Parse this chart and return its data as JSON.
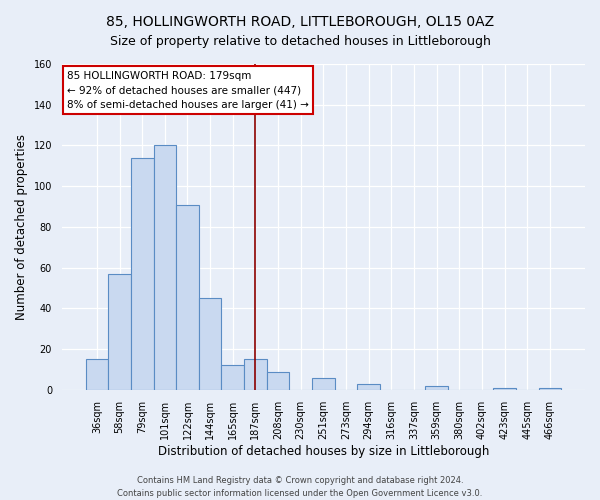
{
  "title": "85, HOLLINGWORTH ROAD, LITTLEBOROUGH, OL15 0AZ",
  "subtitle": "Size of property relative to detached houses in Littleborough",
  "xlabel": "Distribution of detached houses by size in Littleborough",
  "ylabel": "Number of detached properties",
  "categories": [
    "36sqm",
    "58sqm",
    "79sqm",
    "101sqm",
    "122sqm",
    "144sqm",
    "165sqm",
    "187sqm",
    "208sqm",
    "230sqm",
    "251sqm",
    "273sqm",
    "294sqm",
    "316sqm",
    "337sqm",
    "359sqm",
    "380sqm",
    "402sqm",
    "423sqm",
    "445sqm",
    "466sqm"
  ],
  "values": [
    15,
    57,
    114,
    120,
    91,
    45,
    12,
    15,
    9,
    0,
    6,
    0,
    3,
    0,
    0,
    2,
    0,
    0,
    1,
    0,
    1
  ],
  "bar_color": "#c9d9f0",
  "bar_edgecolor": "#5a8cc4",
  "bar_linewidth": 0.8,
  "vline_x": 7,
  "vline_color": "#8b0000",
  "vline_linewidth": 1.2,
  "ylim": [
    0,
    160
  ],
  "yticks": [
    0,
    20,
    40,
    60,
    80,
    100,
    120,
    140,
    160
  ],
  "annotation_line1": "85 HOLLINGWORTH ROAD: 179sqm",
  "annotation_line2": "← 92% of detached houses are smaller (447)",
  "annotation_line3": "8% of semi-detached houses are larger (41) →",
  "annotation_box_edgecolor": "#cc0000",
  "annotation_box_facecolor": "#ffffff",
  "footer_line1": "Contains HM Land Registry data © Crown copyright and database right 2024.",
  "footer_line2": "Contains public sector information licensed under the Open Government Licence v3.0.",
  "background_color": "#e8eef8",
  "plot_background_color": "#e8eef8",
  "title_fontsize": 10,
  "subtitle_fontsize": 9,
  "xlabel_fontsize": 8.5,
  "ylabel_fontsize": 8.5,
  "tick_fontsize": 7,
  "annotation_fontsize": 7.5,
  "footer_fontsize": 6
}
